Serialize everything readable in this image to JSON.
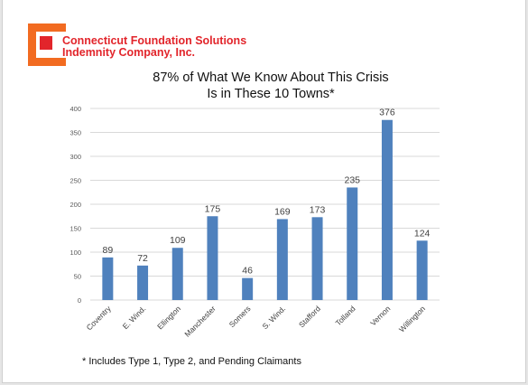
{
  "header": {
    "company_line1": "Connecticut Foundation Solutions",
    "company_line2": "Indemnity Company, Inc.",
    "logo_icon": "cfsi-logo-icon",
    "brand_orange": "#f26b21",
    "brand_red": "#e2252b"
  },
  "chart_data": {
    "type": "bar",
    "title_line1": "87% of What We Know About This Crisis",
    "title_line2": "Is in These 10 Towns*",
    "categories": [
      "Coventry",
      "E. Wind.",
      "Ellington",
      "Manchester",
      "Somers",
      "S. Wind.",
      "Stafford",
      "Tolland",
      "Vernon",
      "Willington"
    ],
    "values": [
      89,
      72,
      109,
      175,
      46,
      169,
      173,
      235,
      376,
      124
    ],
    "ylim": [
      0,
      400
    ],
    "yticks": [
      0,
      50,
      100,
      150,
      200,
      250,
      300,
      350,
      400
    ],
    "grid": true,
    "bar_color": "#4f81bd"
  },
  "footnote": "* Includes Type 1, Type 2, and Pending Claimants"
}
